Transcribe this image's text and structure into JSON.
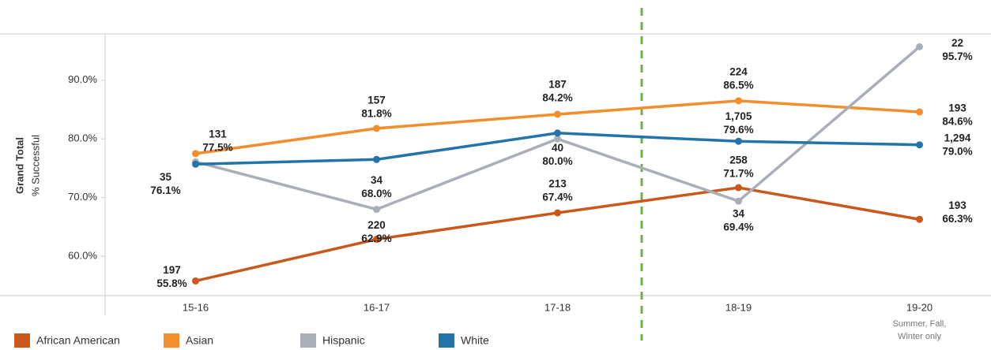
{
  "chart_data": {
    "type": "line",
    "y_title": "Grand Total",
    "y_subtitle": "% Successful",
    "categories": [
      "15-16",
      "16-17",
      "17-18",
      "18-19",
      "19-20"
    ],
    "x_note": [
      "Summer, Fall,",
      "Winter only"
    ],
    "ylim": [
      53.3,
      97.9
    ],
    "yticks": [
      {
        "value": 60,
        "label": "60.0%"
      },
      {
        "value": 70,
        "label": "70.0%"
      },
      {
        "value": 80,
        "label": "80.0%"
      },
      {
        "value": 90,
        "label": "90.0%"
      }
    ],
    "series": [
      {
        "name": "African American",
        "color": "#c9581a",
        "values": [
          55.8,
          62.9,
          67.4,
          71.7,
          66.3
        ],
        "value_labels": [
          "55.8%",
          "62.9%",
          "67.4%",
          "71.7%",
          "66.3%"
        ],
        "counts": [
          197,
          220,
          213,
          258,
          193
        ]
      },
      {
        "name": "Asian",
        "color": "#f28e2b",
        "values": [
          77.5,
          81.8,
          84.2,
          86.5,
          84.6
        ],
        "value_labels": [
          "77.5%",
          "81.8%",
          "84.2%",
          "86.5%",
          "84.6%"
        ],
        "counts": [
          131,
          157,
          187,
          224,
          193
        ]
      },
      {
        "name": "Hispanic",
        "color": "#a9aeb9",
        "values": [
          76.1,
          68.0,
          80.0,
          69.4,
          95.7
        ],
        "value_labels": [
          "76.1%",
          "68.0%",
          "80.0%",
          "69.4%",
          "95.7%"
        ],
        "counts": [
          35,
          34,
          40,
          34,
          22
        ]
      },
      {
        "name": "White",
        "color": "#2574a9",
        "values": [
          75.7,
          76.5,
          81.0,
          79.6,
          79.0
        ],
        "value_labels": [
          null,
          null,
          null,
          "79.6%",
          "79.0%"
        ],
        "counts": [
          null,
          null,
          null,
          {
            "value": 1705,
            "label": "1,705"
          },
          {
            "value": 1294,
            "label": "1,294"
          }
        ]
      }
    ]
  }
}
